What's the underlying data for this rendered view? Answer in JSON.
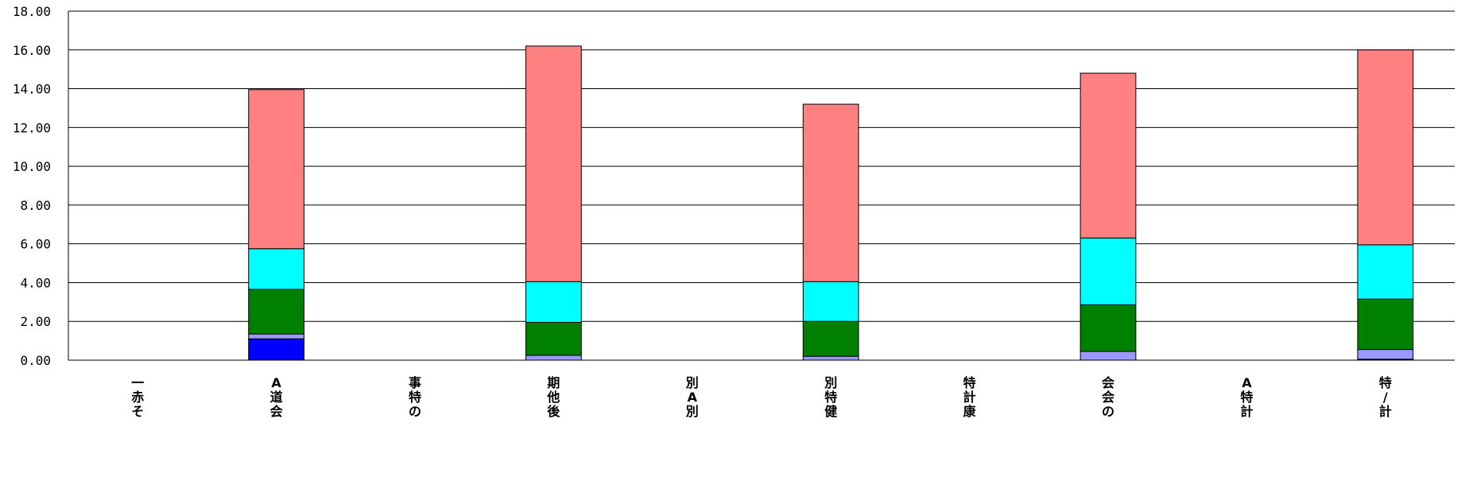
{
  "chart_data": {
    "type": "bar",
    "stacked": true,
    "categories": [
      "一赤そ",
      "A道会",
      "事特の",
      "期他後",
      "別A別",
      "別特健",
      "特計康",
      "会会の",
      "A特計",
      "特/計"
    ],
    "ylim": [
      0,
      18
    ],
    "yticks": [
      "0.00",
      "2.00",
      "4.00",
      "6.00",
      "8.00",
      "10.00",
      "12.00",
      "14.00",
      "16.00",
      "18.00"
    ],
    "grid": true,
    "series": [
      {
        "color": "#0000ff",
        "values": [
          0,
          1.1,
          0,
          0,
          0,
          0,
          0,
          0,
          0,
          0.05
        ]
      },
      {
        "color": "#9999ff",
        "values": [
          0,
          0.25,
          0,
          0.25,
          0,
          0.2,
          0,
          0.45,
          0,
          0.5
        ]
      },
      {
        "color": "#008000",
        "values": [
          0,
          2.3,
          0,
          1.7,
          0,
          1.8,
          0,
          2.4,
          0,
          2.6
        ]
      },
      {
        "color": "#00ffff",
        "values": [
          0,
          2.1,
          0,
          2.1,
          0,
          2.05,
          0,
          3.45,
          0,
          2.8
        ]
      },
      {
        "color": "#ff8080",
        "values": [
          0,
          8.2,
          0,
          12.15,
          0,
          9.15,
          0,
          8.5,
          0,
          10.05
        ]
      }
    ]
  }
}
